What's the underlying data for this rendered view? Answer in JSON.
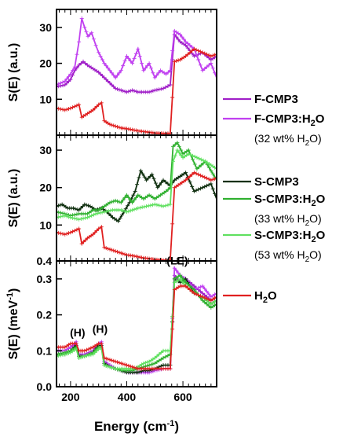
{
  "chart_data": [
    {
      "type": "line",
      "panel": "top",
      "ylabel": "S(E) (a.u.)",
      "ylim": [
        0,
        35
      ],
      "yticks": [
        10,
        20,
        30
      ],
      "ytick_labels": [
        "10",
        "20",
        "30"
      ],
      "xlim": [
        150,
        720
      ],
      "series": [
        {
          "name": "F-CMP3",
          "color": "#a020c8",
          "x": [
            150,
            180,
            200,
            215,
            230,
            245,
            260,
            280,
            300,
            320,
            340,
            360,
            380,
            400,
            420,
            440,
            460,
            480,
            500,
            530,
            555,
            570,
            590,
            610,
            640,
            670,
            700,
            720
          ],
          "y": [
            13.5,
            14,
            15.5,
            18,
            19.5,
            20.5,
            19.5,
            18.5,
            17.5,
            16,
            14.5,
            13,
            12.5,
            12,
            12.5,
            12,
            12,
            12,
            12.5,
            13,
            14,
            28,
            26,
            25,
            22,
            23,
            21,
            22
          ]
        },
        {
          "name": "F-CMP3:H2O",
          "color": "#c040f0",
          "x": [
            150,
            180,
            200,
            215,
            230,
            240,
            250,
            262,
            275,
            290,
            300,
            320,
            340,
            360,
            380,
            400,
            420,
            440,
            460,
            480,
            500,
            520,
            540,
            555,
            570,
            590,
            610,
            640,
            670,
            700,
            720
          ],
          "y": [
            14,
            15,
            17,
            19,
            26,
            32.5,
            30,
            27.5,
            28.5,
            25,
            23,
            20,
            18,
            16,
            18,
            22,
            20,
            24,
            18,
            20,
            16,
            18,
            17,
            18,
            29,
            28,
            26,
            24,
            18,
            20,
            16
          ]
        },
        {
          "name": "H2O",
          "color": "#e02020",
          "x": [
            150,
            180,
            200,
            230,
            240,
            260,
            280,
            300,
            310,
            320,
            340,
            360,
            380,
            400,
            420,
            440,
            460,
            480,
            500,
            530,
            555,
            570,
            590,
            610,
            640,
            670,
            700,
            720
          ],
          "y": [
            7.5,
            7,
            7.5,
            8.5,
            5,
            6,
            7,
            8.5,
            9,
            4,
            3,
            2.5,
            2,
            1.8,
            1.5,
            1.2,
            1,
            0.8,
            0.6,
            0.5,
            0.5,
            20.5,
            21,
            22,
            24,
            23,
            22,
            22.5
          ]
        }
      ]
    },
    {
      "type": "line",
      "panel": "middle",
      "ylabel": "S(E) (a.u.)",
      "ylim": [
        0.4,
        34
      ],
      "yticks": [
        0.4,
        10,
        20,
        30
      ],
      "ytick_labels": [
        "0.4",
        "10",
        "20",
        "30"
      ],
      "xlim": [
        150,
        720
      ],
      "series": [
        {
          "name": "S-CMP3",
          "color": "#103010",
          "x": [
            150,
            170,
            190,
            210,
            230,
            250,
            270,
            290,
            310,
            330,
            350,
            370,
            390,
            410,
            430,
            450,
            470,
            490,
            510,
            530,
            555,
            570,
            590,
            610,
            640,
            670,
            700,
            720
          ],
          "y": [
            15,
            15.5,
            14.5,
            14.5,
            14,
            15.5,
            15,
            14,
            14.5,
            13.5,
            12,
            11,
            13.5,
            16,
            19,
            24.5,
            22,
            23.5,
            20,
            22,
            20.5,
            22,
            23,
            24,
            19,
            20,
            21,
            17
          ]
        },
        {
          "name": "S-CMP3:H2O",
          "color": "#30b030",
          "x": [
            150,
            180,
            200,
            230,
            260,
            280,
            300,
            320,
            340,
            360,
            380,
            400,
            420,
            440,
            460,
            480,
            500,
            520,
            540,
            555,
            565,
            580,
            600,
            620,
            650,
            680,
            720
          ],
          "y": [
            13.5,
            13,
            12.5,
            13,
            13,
            14,
            14,
            15,
            16,
            16.5,
            16,
            18,
            16,
            18,
            17,
            18,
            17,
            18,
            19,
            20,
            31,
            32,
            29,
            30,
            25,
            27,
            22
          ]
        },
        {
          "name": "S-CMP3:H2O",
          "color": "#60e060",
          "x": [
            150,
            180,
            200,
            230,
            260,
            290,
            320,
            350,
            380,
            400,
            420,
            440,
            470,
            500,
            530,
            555,
            565,
            580,
            600,
            620,
            650,
            680,
            720
          ],
          "y": [
            12,
            12.5,
            12,
            11.5,
            12,
            13,
            13.5,
            14,
            14,
            13.5,
            14,
            14.5,
            15,
            15.5,
            15,
            15.5,
            27,
            30,
            28,
            29,
            28,
            27,
            25
          ]
        },
        {
          "name": "H2O",
          "color": "#e02020",
          "x": [
            150,
            180,
            200,
            230,
            240,
            260,
            280,
            300,
            310,
            320,
            340,
            360,
            380,
            400,
            420,
            440,
            460,
            480,
            500,
            530,
            555,
            570,
            590,
            610,
            640,
            670,
            700,
            720
          ],
          "y": [
            8,
            7.5,
            8,
            9,
            5,
            6.5,
            7.5,
            9,
            9.5,
            4,
            3.5,
            3,
            2.5,
            2,
            1.8,
            1.5,
            1.2,
            1,
            0.8,
            0.6,
            0.6,
            20,
            21,
            22,
            24,
            23,
            22,
            22.5
          ]
        }
      ]
    },
    {
      "type": "line",
      "panel": "bottom",
      "ylabel": "S(E) (meV-1)",
      "ylim": [
        0,
        0.35
      ],
      "yticks": [
        0.0,
        0.1,
        0.2,
        0.3
      ],
      "ytick_labels": [
        "0.0",
        "0.1",
        "0.2",
        "0.3"
      ],
      "xlim": [
        150,
        720
      ],
      "xlabel": "Energy (cm-1)",
      "xticks": [
        200,
        400,
        600
      ],
      "xtick_labels": [
        "200",
        "400",
        "600"
      ],
      "annotations": [
        {
          "text": "(H)",
          "x": 225,
          "y": 0.14
        },
        {
          "text": "(H)",
          "x": 305,
          "y": 0.15
        },
        {
          "text": "(LE)",
          "x": 580,
          "y": 0.34
        }
      ],
      "series": [
        {
          "name": "F-CMP3",
          "color": "#a020c8",
          "x": [
            150,
            180,
            200,
            220,
            230,
            250,
            280,
            300,
            310,
            320,
            340,
            360,
            380,
            400,
            420,
            440,
            460,
            480,
            500,
            530,
            555,
            570,
            590,
            610,
            640,
            670,
            700,
            720
          ],
          "y": [
            0.1,
            0.1,
            0.11,
            0.12,
            0.09,
            0.09,
            0.1,
            0.12,
            0.12,
            0.07,
            0.06,
            0.05,
            0.045,
            0.04,
            0.04,
            0.04,
            0.04,
            0.04,
            0.045,
            0.05,
            0.05,
            0.31,
            0.29,
            0.3,
            0.28,
            0.26,
            0.24,
            0.25
          ]
        },
        {
          "name": "F-CMP3:H2O",
          "color": "#c040f0",
          "x": [
            150,
            180,
            200,
            220,
            230,
            250,
            280,
            300,
            310,
            320,
            340,
            360,
            380,
            400,
            420,
            440,
            460,
            480,
            500,
            530,
            555,
            570,
            590,
            610,
            640,
            670,
            700,
            720
          ],
          "y": [
            0.1,
            0.1,
            0.11,
            0.125,
            0.09,
            0.09,
            0.1,
            0.12,
            0.125,
            0.07,
            0.06,
            0.05,
            0.045,
            0.04,
            0.04,
            0.04,
            0.04,
            0.04,
            0.045,
            0.05,
            0.05,
            0.33,
            0.31,
            0.3,
            0.27,
            0.28,
            0.25,
            0.26
          ]
        },
        {
          "name": "S-CMP3",
          "color": "#103010",
          "x": [
            150,
            180,
            200,
            220,
            230,
            250,
            280,
            300,
            310,
            320,
            340,
            360,
            380,
            400,
            420,
            440,
            460,
            480,
            500,
            530,
            555,
            570,
            590,
            610,
            640,
            670,
            700,
            720
          ],
          "y": [
            0.09,
            0.09,
            0.1,
            0.115,
            0.085,
            0.085,
            0.095,
            0.115,
            0.115,
            0.065,
            0.055,
            0.05,
            0.045,
            0.04,
            0.04,
            0.04,
            0.045,
            0.045,
            0.05,
            0.06,
            0.06,
            0.3,
            0.29,
            0.3,
            0.26,
            0.25,
            0.23,
            0.24
          ]
        },
        {
          "name": "S-CMP3:H2O",
          "color": "#30b030",
          "x": [
            150,
            180,
            200,
            220,
            230,
            250,
            280,
            300,
            310,
            320,
            340,
            360,
            380,
            400,
            420,
            440,
            460,
            480,
            500,
            530,
            555,
            570,
            590,
            610,
            640,
            670,
            700,
            720
          ],
          "y": [
            0.09,
            0.095,
            0.1,
            0.11,
            0.08,
            0.085,
            0.095,
            0.11,
            0.11,
            0.06,
            0.055,
            0.05,
            0.045,
            0.045,
            0.045,
            0.05,
            0.055,
            0.06,
            0.065,
            0.08,
            0.09,
            0.3,
            0.31,
            0.29,
            0.27,
            0.24,
            0.22,
            0.23
          ]
        },
        {
          "name": "S-CMP3:H2O",
          "color": "#60e060",
          "x": [
            150,
            180,
            200,
            220,
            230,
            250,
            280,
            300,
            310,
            320,
            340,
            360,
            380,
            400,
            420,
            440,
            460,
            480,
            500,
            530,
            555,
            570,
            590,
            610,
            640,
            670,
            700,
            720
          ],
          "y": [
            0.085,
            0.09,
            0.095,
            0.105,
            0.08,
            0.085,
            0.09,
            0.105,
            0.105,
            0.06,
            0.055,
            0.05,
            0.05,
            0.05,
            0.05,
            0.055,
            0.065,
            0.07,
            0.08,
            0.1,
            0.1,
            0.29,
            0.3,
            0.28,
            0.26,
            0.25,
            0.23,
            0.24
          ]
        },
        {
          "name": "H2O",
          "color": "#e02020",
          "x": [
            150,
            180,
            200,
            220,
            230,
            250,
            280,
            300,
            310,
            320,
            340,
            360,
            380,
            400,
            420,
            440,
            460,
            480,
            500,
            530,
            555,
            570,
            590,
            610,
            640,
            670,
            700,
            720
          ],
          "y": [
            0.11,
            0.11,
            0.12,
            0.12,
            0.1,
            0.1,
            0.11,
            0.12,
            0.12,
            0.08,
            0.075,
            0.07,
            0.065,
            0.06,
            0.055,
            0.05,
            0.05,
            0.05,
            0.05,
            0.05,
            0.05,
            0.27,
            0.28,
            0.28,
            0.26,
            0.25,
            0.24,
            0.25
          ]
        }
      ]
    }
  ],
  "legend": {
    "groups": [
      {
        "entries": [
          {
            "label": "F-CMP3",
            "color": "#a020c8"
          },
          {
            "label": "F-CMP3:H",
            "sub": "2",
            "suffix": "O",
            "color": "#c040f0",
            "note": "(32 wt% H2O)"
          }
        ]
      },
      {
        "entries": [
          {
            "label": "S-CMP3",
            "color": "#103010"
          },
          {
            "label": "S-CMP3:H",
            "sub": "2",
            "suffix": "O",
            "color": "#30b030",
            "note": "(33 wt% H2O)"
          },
          {
            "label": "S-CMP3:H",
            "sub": "2",
            "suffix": "O",
            "color": "#60e060",
            "note": "(53 wt% H2O)"
          }
        ]
      },
      {
        "entries": [
          {
            "label": "H",
            "sub": "2",
            "suffix": "O",
            "color": "#e02020"
          }
        ]
      }
    ]
  }
}
